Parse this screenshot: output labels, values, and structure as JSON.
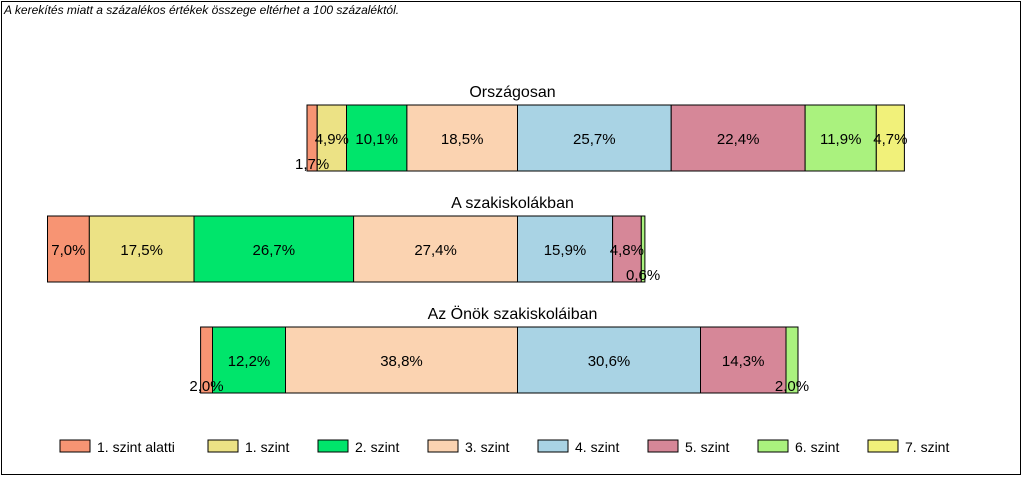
{
  "note": "A kerekítés miatt a  százalékos értékek összege eltérhet a 100 százaléktól.",
  "colors": {
    "below1": "#f79473",
    "level1": "#ece285",
    "level2": "#00e56b",
    "level3": "#fbd3b1",
    "level4": "#a9d3e4",
    "level5": "#d68798",
    "level6": "#aaf27e",
    "level7": "#f1f17a"
  },
  "chart_data": {
    "type": "bar",
    "orientation": "horizontal",
    "stacked": "diverging",
    "categories": [
      "Országosan",
      "A szakiskolákban",
      "Az Önök szakiskoláiban"
    ],
    "series": [
      {
        "name": "1. szint alatti",
        "color_key": "below1",
        "values": [
          1.7,
          7.0,
          2.0
        ],
        "labels": [
          "1,7%",
          "7,0%",
          "2,0%"
        ]
      },
      {
        "name": "1. szint",
        "color_key": "level1",
        "values": [
          4.9,
          17.5,
          0
        ],
        "labels": [
          "4,9%",
          "17,5%",
          ""
        ]
      },
      {
        "name": "2. szint",
        "color_key": "level2",
        "values": [
          10.1,
          26.7,
          12.2
        ],
        "labels": [
          "10,1%",
          "26,7%",
          "12,2%"
        ]
      },
      {
        "name": "3. szint",
        "color_key": "level3",
        "values": [
          18.5,
          27.4,
          38.8
        ],
        "labels": [
          "18,5%",
          "27,4%",
          "38,8%"
        ]
      },
      {
        "name": "4. szint",
        "color_key": "level4",
        "values": [
          25.7,
          15.9,
          30.6
        ],
        "labels": [
          "25,7%",
          "15,9%",
          "30,6%"
        ]
      },
      {
        "name": "5. szint",
        "color_key": "level5",
        "values": [
          22.4,
          4.8,
          14.3
        ],
        "labels": [
          "22,4%",
          "4,8%",
          "14,3%"
        ]
      },
      {
        "name": "6. szint",
        "color_key": "level6",
        "values": [
          11.9,
          0.6,
          2.0
        ],
        "labels": [
          "11,9%",
          "0,6%",
          "2,0%"
        ]
      },
      {
        "name": "7. szint",
        "color_key": "level7",
        "values": [
          4.7,
          0,
          0
        ],
        "labels": [
          "4,7%",
          "",
          ""
        ]
      }
    ],
    "legend_position": "bottom",
    "grid": false
  }
}
